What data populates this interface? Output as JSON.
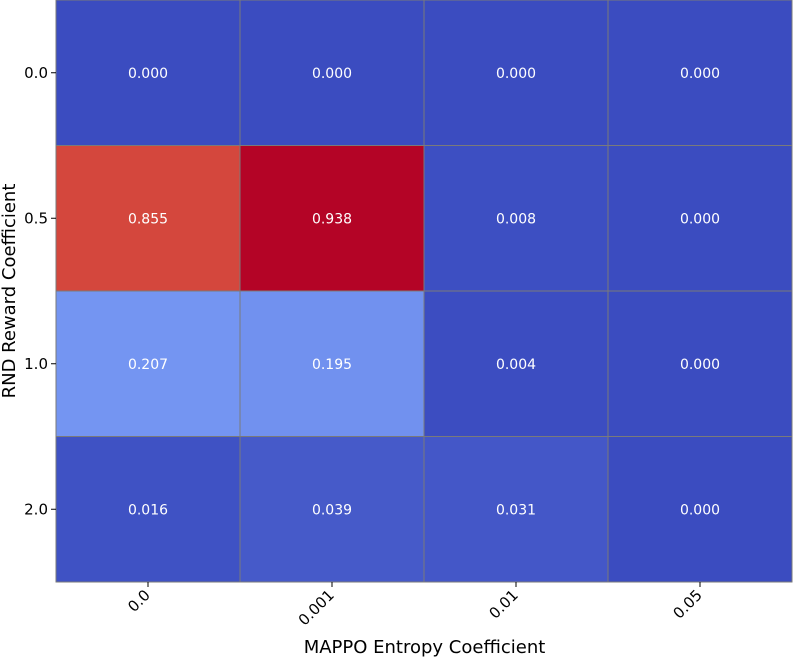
{
  "chart_data": {
    "type": "heatmap",
    "xlabel": "MAPPO Entropy Coefficient",
    "ylabel": "RND Reward Coefficient",
    "x_categories": [
      "0.0",
      "0.001",
      "0.01",
      "0.05"
    ],
    "y_categories": [
      "0.0",
      "0.5",
      "1.0",
      "2.0"
    ],
    "values": [
      [
        0.0,
        0.0,
        0.0,
        0.0
      ],
      [
        0.855,
        0.938,
        0.008,
        0.0
      ],
      [
        0.207,
        0.195,
        0.004,
        0.0
      ],
      [
        0.016,
        0.039,
        0.031,
        0.0
      ]
    ],
    "value_labels": [
      [
        "0.000",
        "0.000",
        "0.000",
        "0.000"
      ],
      [
        "0.855",
        "0.938",
        "0.008",
        "0.000"
      ],
      [
        "0.207",
        "0.195",
        "0.004",
        "0.000"
      ],
      [
        "0.016",
        "0.039",
        "0.031",
        "0.000"
      ]
    ],
    "colormap": "coolwarm",
    "vmin": 0.0,
    "vmax": 0.938,
    "colors": {
      "cell_edge": "#7a7a7a",
      "label_text": "#ffffff",
      "axis_text": "#000000"
    }
  }
}
